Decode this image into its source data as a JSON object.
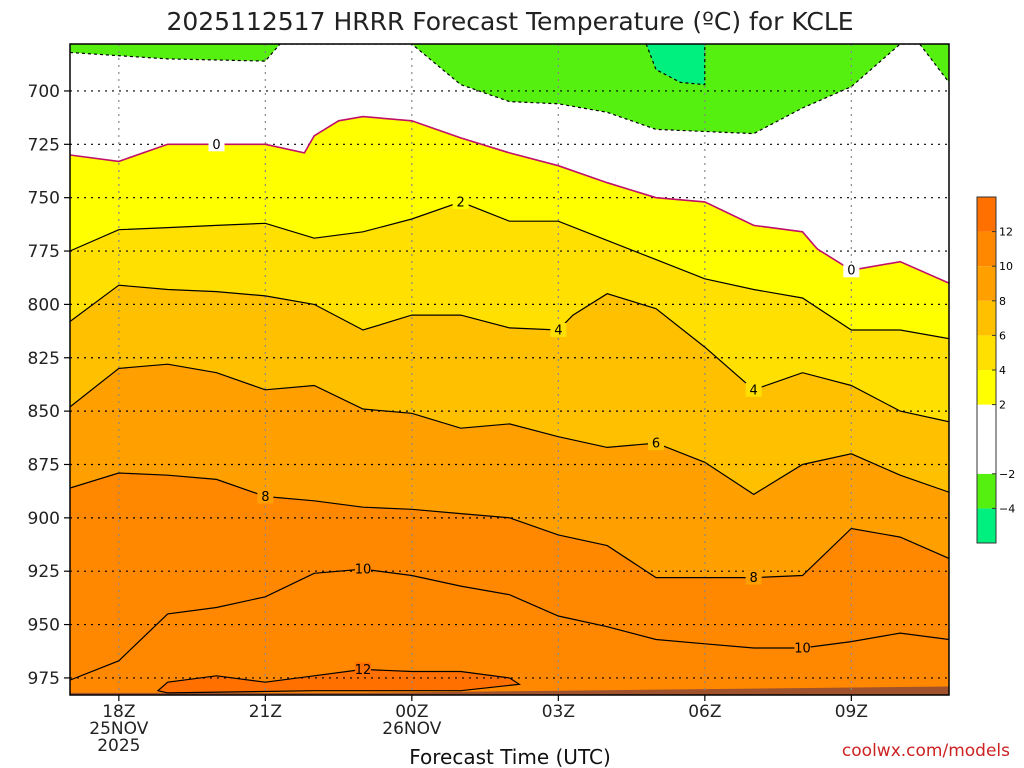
{
  "chart_data": {
    "type": "contour",
    "title": "2025112517 HRRR Forecast Temperature (ºC) for KCLE",
    "xlabel": "Forecast Time (UTC)",
    "credit": "coolwx.com/models",
    "y_axis": {
      "direction": "inverted",
      "range": [
        678,
        983
      ],
      "ticks": [
        700,
        725,
        750,
        775,
        800,
        825,
        850,
        875,
        900,
        925,
        950,
        975
      ]
    },
    "x_axis": {
      "range_hours": [
        -1.0,
        17.0
      ],
      "ticks": [
        {
          "hour": 0,
          "lines": [
            "18Z",
            "25NOV",
            "2025"
          ]
        },
        {
          "hour": 3,
          "lines": [
            "21Z"
          ]
        },
        {
          "hour": 6,
          "lines": [
            "00Z",
            "26NOV"
          ]
        },
        {
          "hour": 9,
          "lines": [
            "03Z"
          ]
        },
        {
          "hour": 12,
          "lines": [
            "06Z"
          ]
        },
        {
          "hour": 15,
          "lines": [
            "09Z"
          ]
        }
      ]
    },
    "grid": true,
    "colorbar": {
      "levels": [
        -6,
        -4,
        -2,
        0,
        2,
        4,
        6,
        8,
        10,
        12,
        14
      ],
      "colors": [
        "#00f080",
        "#55f010",
        "#ffffff",
        "#ffffff",
        "#ffff00",
        "#ffe000",
        "#ffc000",
        "#ffa000",
        "#ff8800",
        "#ff7000"
      ],
      "labels": [
        "−4",
        "−2",
        "2",
        "4",
        "6",
        "8",
        "10",
        "12"
      ],
      "label_values": [
        -4,
        -2,
        2,
        4,
        6,
        8,
        10,
        12
      ]
    },
    "surface_pressure": [
      {
        "h": -1.0,
        "p": 982
      },
      {
        "h": 5.0,
        "p": 982
      },
      {
        "h": 9.0,
        "p": 981
      },
      {
        "h": 13.0,
        "p": 980
      },
      {
        "h": 17.0,
        "p": 979
      }
    ],
    "isotherms": [
      {
        "value": 12,
        "label": "12",
        "labels_at": [
          {
            "h": 5.0,
            "p": 971
          }
        ],
        "closed": true,
        "points": [
          {
            "h": 0.8,
            "p": 981
          },
          {
            "h": 1.0,
            "p": 977
          },
          {
            "h": 2.0,
            "p": 974
          },
          {
            "h": 3.0,
            "p": 977
          },
          {
            "h": 4.0,
            "p": 974
          },
          {
            "h": 5.0,
            "p": 971
          },
          {
            "h": 6.0,
            "p": 972
          },
          {
            "h": 7.0,
            "p": 972
          },
          {
            "h": 8.0,
            "p": 975
          },
          {
            "h": 8.2,
            "p": 978
          },
          {
            "h": 7.0,
            "p": 981
          },
          {
            "h": 4.0,
            "p": 981
          },
          {
            "h": 1.0,
            "p": 982
          }
        ]
      },
      {
        "value": 10,
        "label": "10",
        "labels_at": [
          {
            "h": 5.0,
            "p": 924
          },
          {
            "h": 14.0,
            "p": 961
          }
        ],
        "points": [
          {
            "h": -1.0,
            "p": 976
          },
          {
            "h": 0.0,
            "p": 967
          },
          {
            "h": 1.0,
            "p": 945
          },
          {
            "h": 2.0,
            "p": 942
          },
          {
            "h": 3.0,
            "p": 937
          },
          {
            "h": 4.0,
            "p": 926
          },
          {
            "h": 5.0,
            "p": 924
          },
          {
            "h": 6.0,
            "p": 927
          },
          {
            "h": 7.0,
            "p": 932
          },
          {
            "h": 8.0,
            "p": 936
          },
          {
            "h": 9.0,
            "p": 946
          },
          {
            "h": 10.0,
            "p": 951
          },
          {
            "h": 11.0,
            "p": 957
          },
          {
            "h": 12.0,
            "p": 959
          },
          {
            "h": 13.0,
            "p": 961
          },
          {
            "h": 14.0,
            "p": 961
          },
          {
            "h": 15.0,
            "p": 958
          },
          {
            "h": 16.0,
            "p": 954
          },
          {
            "h": 17.0,
            "p": 957
          }
        ]
      },
      {
        "value": 8,
        "label": "8",
        "labels_at": [
          {
            "h": 3.0,
            "p": 890
          },
          {
            "h": 13.0,
            "p": 928
          }
        ],
        "points": [
          {
            "h": -1.0,
            "p": 886
          },
          {
            "h": 0.0,
            "p": 879
          },
          {
            "h": 1.0,
            "p": 880
          },
          {
            "h": 2.0,
            "p": 882
          },
          {
            "h": 3.0,
            "p": 890
          },
          {
            "h": 4.0,
            "p": 892
          },
          {
            "h": 5.0,
            "p": 895
          },
          {
            "h": 6.0,
            "p": 896
          },
          {
            "h": 7.0,
            "p": 898
          },
          {
            "h": 8.0,
            "p": 900
          },
          {
            "h": 9.0,
            "p": 908
          },
          {
            "h": 10.0,
            "p": 913
          },
          {
            "h": 11.0,
            "p": 928
          },
          {
            "h": 12.0,
            "p": 928
          },
          {
            "h": 13.0,
            "p": 928
          },
          {
            "h": 14.0,
            "p": 927
          },
          {
            "h": 15.0,
            "p": 905
          },
          {
            "h": 16.0,
            "p": 909
          },
          {
            "h": 17.0,
            "p": 919
          }
        ]
      },
      {
        "value": 6,
        "label": "6",
        "labels_at": [
          {
            "h": 11.0,
            "p": 865
          }
        ],
        "points": [
          {
            "h": -1.0,
            "p": 848
          },
          {
            "h": 0.0,
            "p": 830
          },
          {
            "h": 1.0,
            "p": 828
          },
          {
            "h": 2.0,
            "p": 832
          },
          {
            "h": 3.0,
            "p": 840
          },
          {
            "h": 4.0,
            "p": 838
          },
          {
            "h": 5.0,
            "p": 849
          },
          {
            "h": 6.0,
            "p": 851
          },
          {
            "h": 7.0,
            "p": 858
          },
          {
            "h": 8.0,
            "p": 856
          },
          {
            "h": 9.0,
            "p": 862
          },
          {
            "h": 10.0,
            "p": 867
          },
          {
            "h": 11.0,
            "p": 865
          },
          {
            "h": 12.0,
            "p": 874
          },
          {
            "h": 13.0,
            "p": 889
          },
          {
            "h": 14.0,
            "p": 875
          },
          {
            "h": 15.0,
            "p": 870
          },
          {
            "h": 16.0,
            "p": 880
          },
          {
            "h": 17.0,
            "p": 888
          }
        ]
      },
      {
        "value": 4,
        "label": "4",
        "labels_at": [
          {
            "h": 9.0,
            "p": 812
          },
          {
            "h": 13.0,
            "p": 840
          }
        ],
        "points": [
          {
            "h": -1.0,
            "p": 808
          },
          {
            "h": 0.0,
            "p": 791
          },
          {
            "h": 1.0,
            "p": 793
          },
          {
            "h": 2.0,
            "p": 794
          },
          {
            "h": 3.0,
            "p": 796
          },
          {
            "h": 4.0,
            "p": 800
          },
          {
            "h": 5.0,
            "p": 812
          },
          {
            "h": 6.0,
            "p": 805
          },
          {
            "h": 7.0,
            "p": 805
          },
          {
            "h": 8.0,
            "p": 811
          },
          {
            "h": 9.0,
            "p": 812
          },
          {
            "h": 9.3,
            "p": 805
          },
          {
            "h": 10.0,
            "p": 795
          },
          {
            "h": 11.0,
            "p": 802
          },
          {
            "h": 12.0,
            "p": 820
          },
          {
            "h": 13.0,
            "p": 840
          },
          {
            "h": 14.0,
            "p": 832
          },
          {
            "h": 15.0,
            "p": 838
          },
          {
            "h": 16.0,
            "p": 850
          },
          {
            "h": 17.0,
            "p": 855
          }
        ]
      },
      {
        "value": 2,
        "label": "2",
        "labels_at": [
          {
            "h": 7.0,
            "p": 752
          }
        ],
        "points": [
          {
            "h": -1.0,
            "p": 775
          },
          {
            "h": 0.0,
            "p": 765
          },
          {
            "h": 1.0,
            "p": 764
          },
          {
            "h": 2.0,
            "p": 763
          },
          {
            "h": 3.0,
            "p": 762
          },
          {
            "h": 4.0,
            "p": 769
          },
          {
            "h": 5.0,
            "p": 766
          },
          {
            "h": 6.0,
            "p": 760
          },
          {
            "h": 7.0,
            "p": 752
          },
          {
            "h": 8.0,
            "p": 761
          },
          {
            "h": 9.0,
            "p": 761
          },
          {
            "h": 10.0,
            "p": 770
          },
          {
            "h": 11.0,
            "p": 779
          },
          {
            "h": 12.0,
            "p": 788
          },
          {
            "h": 13.0,
            "p": 793
          },
          {
            "h": 14.0,
            "p": 797
          },
          {
            "h": 15.0,
            "p": 812
          },
          {
            "h": 16.0,
            "p": 812
          },
          {
            "h": 17.0,
            "p": 816
          }
        ]
      },
      {
        "value": 0,
        "label": "0",
        "labels_at": [
          {
            "h": 2.0,
            "p": 725
          },
          {
            "h": 15.0,
            "p": 784
          }
        ],
        "points": [
          {
            "h": -1.0,
            "p": 730
          },
          {
            "h": 0.0,
            "p": 733
          },
          {
            "h": 1.0,
            "p": 725
          },
          {
            "h": 2.0,
            "p": 725
          },
          {
            "h": 3.0,
            "p": 725
          },
          {
            "h": 3.8,
            "p": 729
          },
          {
            "h": 4.0,
            "p": 721
          },
          {
            "h": 4.5,
            "p": 714
          },
          {
            "h": 5.0,
            "p": 712
          },
          {
            "h": 6.0,
            "p": 714
          },
          {
            "h": 7.0,
            "p": 722
          },
          {
            "h": 8.0,
            "p": 729
          },
          {
            "h": 9.0,
            "p": 735
          },
          {
            "h": 10.0,
            "p": 743
          },
          {
            "h": 11.0,
            "p": 750
          },
          {
            "h": 12.0,
            "p": 752
          },
          {
            "h": 13.0,
            "p": 763
          },
          {
            "h": 14.0,
            "p": 766
          },
          {
            "h": 14.3,
            "p": 774
          },
          {
            "h": 15.0,
            "p": 784
          },
          {
            "h": 16.0,
            "p": 780
          },
          {
            "h": 17.0,
            "p": 790
          }
        ]
      },
      {
        "value": -2,
        "label": "",
        "labels_at": [],
        "dashed": true,
        "points": [
          {
            "h": -1.0,
            "p": 682
          },
          {
            "h": 1.0,
            "p": 685
          },
          {
            "h": 3.0,
            "p": 686
          },
          {
            "h": 3.3,
            "p": 678
          },
          {
            "h": 6.0,
            "p": 678
          },
          {
            "h": 7.0,
            "p": 697
          },
          {
            "h": 8.0,
            "p": 705
          },
          {
            "h": 9.0,
            "p": 706
          },
          {
            "h": 10.0,
            "p": 710
          },
          {
            "h": 11.0,
            "p": 718
          },
          {
            "h": 12.0,
            "p": 719
          },
          {
            "h": 13.0,
            "p": 720
          },
          {
            "h": 14.0,
            "p": 708
          },
          {
            "h": 15.0,
            "p": 698
          },
          {
            "h": 16.0,
            "p": 678
          },
          {
            "h": 16.4,
            "p": 678
          },
          {
            "h": 17.0,
            "p": 696
          }
        ]
      },
      {
        "value": -4,
        "label": "",
        "labels_at": [],
        "dashed": true,
        "points": [
          {
            "h": 10.8,
            "p": 678
          },
          {
            "h": 11.0,
            "p": 690
          },
          {
            "h": 11.5,
            "p": 696
          },
          {
            "h": 12.0,
            "p": 697
          },
          {
            "h": 12.0,
            "p": 678
          }
        ]
      }
    ]
  }
}
